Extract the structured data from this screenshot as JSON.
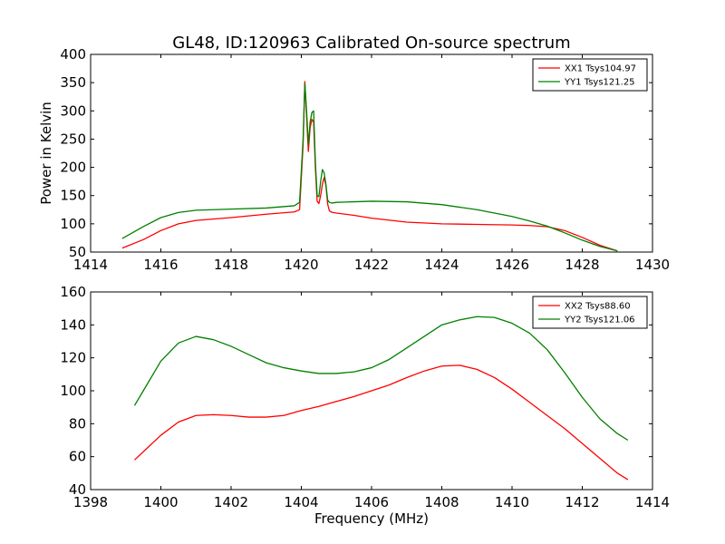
{
  "figure": {
    "title": "GL48, ID:120963 Calibrated On-source spectrum"
  },
  "chart_data": [
    {
      "type": "line",
      "title": "GL48, ID:120963 Calibrated On-source spectrum",
      "xlabel": "",
      "ylabel": "Power in Kelvin",
      "xlim": [
        1414,
        1430
      ],
      "ylim": [
        50,
        400
      ],
      "xticks": [
        1414,
        1416,
        1418,
        1420,
        1422,
        1424,
        1426,
        1428,
        1430
      ],
      "yticks": [
        50,
        100,
        150,
        200,
        250,
        300,
        350,
        400
      ],
      "legend": "top-right",
      "grid": false,
      "series": [
        {
          "name": "XX1 Tsys104.97",
          "color": "#ff0000",
          "x": [
            1414.9,
            1415.5,
            1416.0,
            1416.5,
            1417.0,
            1418.0,
            1419.0,
            1419.8,
            1419.95,
            1420.05,
            1420.1,
            1420.15,
            1420.2,
            1420.25,
            1420.3,
            1420.35,
            1420.4,
            1420.45,
            1420.5,
            1420.55,
            1420.6,
            1420.65,
            1420.7,
            1420.75,
            1420.8,
            1420.85,
            1420.9,
            1421.0,
            1421.5,
            1422.0,
            1423.0,
            1424.0,
            1425.0,
            1426.0,
            1426.5,
            1427.0,
            1427.5,
            1428.0,
            1428.5,
            1429.0
          ],
          "y": [
            57,
            72,
            88,
            100,
            106,
            111,
            117,
            121,
            125,
            240,
            352,
            290,
            228,
            270,
            285,
            280,
            200,
            140,
            136,
            150,
            170,
            182,
            168,
            135,
            123,
            121,
            120,
            119,
            115,
            110,
            103,
            100,
            99,
            98,
            97,
            95,
            88,
            76,
            62,
            52
          ]
        },
        {
          "name": "YY1 Tsys121.25",
          "color": "#008000",
          "x": [
            1414.9,
            1415.5,
            1416.0,
            1416.5,
            1417.0,
            1418.0,
            1419.0,
            1419.8,
            1419.95,
            1420.05,
            1420.1,
            1420.15,
            1420.2,
            1420.25,
            1420.3,
            1420.35,
            1420.4,
            1420.45,
            1420.5,
            1420.55,
            1420.6,
            1420.65,
            1420.7,
            1420.75,
            1420.8,
            1420.85,
            1420.9,
            1421.0,
            1421.5,
            1422.0,
            1423.0,
            1424.0,
            1425.0,
            1426.0,
            1426.5,
            1427.0,
            1427.5,
            1428.0,
            1428.5,
            1429.0
          ],
          "y": [
            74,
            95,
            111,
            120,
            124,
            126,
            128,
            132,
            138,
            250,
            348,
            300,
            240,
            280,
            297,
            300,
            210,
            150,
            148,
            175,
            196,
            190,
            170,
            142,
            138,
            137,
            137,
            138,
            139,
            140,
            139,
            134,
            125,
            113,
            105,
            96,
            84,
            71,
            60,
            52
          ]
        }
      ]
    },
    {
      "type": "line",
      "title": "",
      "xlabel": "Frequency (MHz)",
      "ylabel": "",
      "xlim": [
        1398,
        1414
      ],
      "ylim": [
        40,
        160
      ],
      "xticks": [
        1398,
        1400,
        1402,
        1404,
        1406,
        1408,
        1410,
        1412,
        1414
      ],
      "yticks": [
        40,
        60,
        80,
        100,
        120,
        140,
        160
      ],
      "legend": "top-right",
      "grid": false,
      "series": [
        {
          "name": "XX2 Tsys88.60",
          "color": "#ff0000",
          "x": [
            1399.25,
            1399.5,
            1400.0,
            1400.5,
            1401.0,
            1401.5,
            1402.0,
            1402.5,
            1403.0,
            1403.5,
            1404.0,
            1404.5,
            1405.0,
            1405.5,
            1406.0,
            1406.5,
            1407.0,
            1407.5,
            1408.0,
            1408.5,
            1409.0,
            1409.5,
            1410.0,
            1410.5,
            1411.0,
            1411.5,
            1412.0,
            1412.5,
            1413.0,
            1413.3
          ],
          "y": [
            58,
            63,
            73,
            81,
            85,
            85.5,
            85,
            84,
            84,
            85,
            88,
            90.5,
            93.5,
            96.5,
            100,
            103.5,
            108,
            112,
            115,
            115.5,
            113,
            108,
            101,
            93,
            85,
            77,
            68,
            59,
            50,
            46
          ]
        },
        {
          "name": "YY2 Tsys121.06",
          "color": "#008000",
          "x": [
            1399.25,
            1399.5,
            1400.0,
            1400.5,
            1401.0,
            1401.5,
            1402.0,
            1402.5,
            1403.0,
            1403.5,
            1404.0,
            1404.5,
            1405.0,
            1405.5,
            1406.0,
            1406.5,
            1407.0,
            1407.5,
            1408.0,
            1408.5,
            1409.0,
            1409.5,
            1410.0,
            1410.5,
            1411.0,
            1411.5,
            1412.0,
            1412.5,
            1413.0,
            1413.3
          ],
          "y": [
            91,
            100,
            118,
            129,
            133,
            131,
            127,
            122,
            117,
            114,
            112,
            110.5,
            110.5,
            111.5,
            114,
            119,
            126,
            133,
            140,
            143,
            145,
            144.5,
            141,
            135,
            125,
            111,
            96,
            83,
            74,
            70
          ]
        }
      ]
    }
  ]
}
